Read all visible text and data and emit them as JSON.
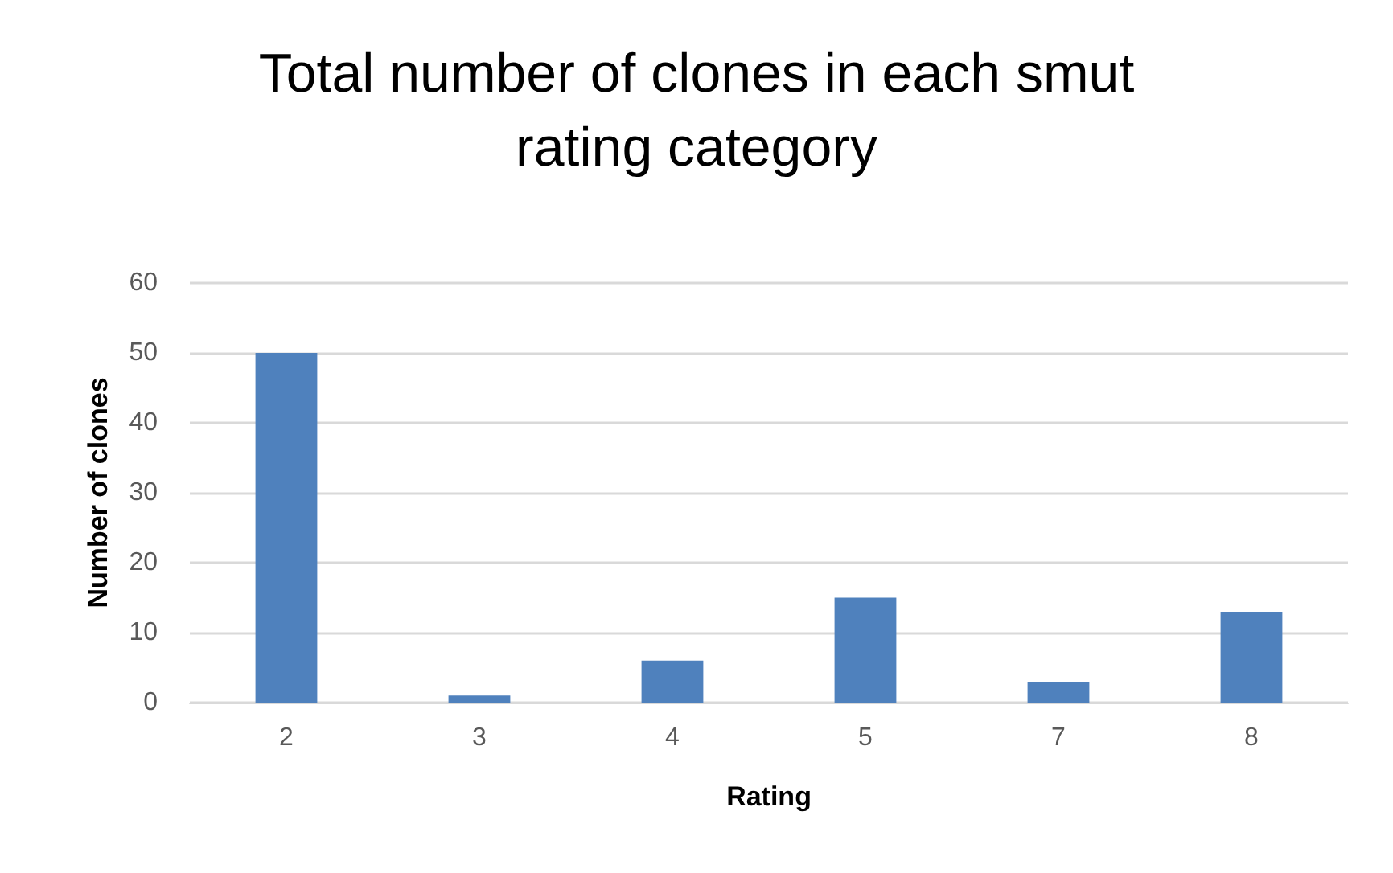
{
  "chart_data": {
    "type": "bar",
    "title": "Total number of clones in each smut\nrating category",
    "xlabel": "Rating",
    "ylabel": "Number of clones",
    "categories": [
      "2",
      "3",
      "4",
      "5",
      "7",
      "8"
    ],
    "values": [
      50,
      1,
      6,
      15,
      3,
      13
    ],
    "color": "#4f81bd",
    "ylim": [
      0,
      60
    ],
    "yticks": [
      0,
      10,
      20,
      30,
      40,
      50,
      60
    ],
    "grid": "y"
  }
}
